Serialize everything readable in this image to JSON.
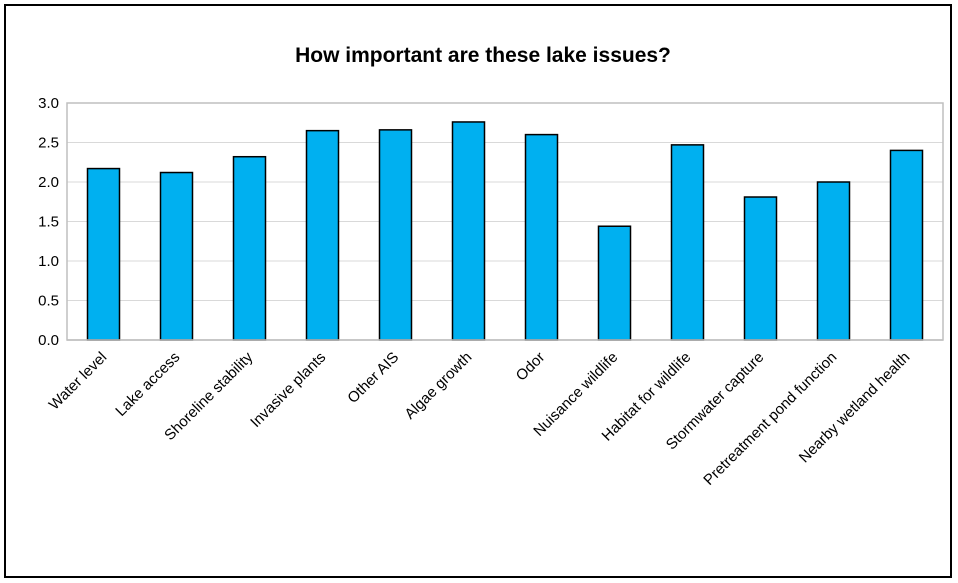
{
  "chart_data": {
    "type": "bar",
    "title": "How important are these lake issues?",
    "xlabel": "",
    "ylabel": "",
    "ylim": [
      0,
      3
    ],
    "yticks": [
      "0.0",
      "0.5",
      "1.0",
      "1.5",
      "2.0",
      "2.5",
      "3.0"
    ],
    "grid": true,
    "legend": "none",
    "bar_color": "#00B0F0",
    "categories": [
      "Water level",
      "Lake access",
      "Shoreline stability",
      "Invasive plants",
      "Other AIS",
      "Algae growth",
      "Odor",
      "Nuisance wildlife",
      "Habitat for wildlife",
      "Stormwater capture",
      "Pretreatment pond function",
      "Nearby wetland health"
    ],
    "values": [
      2.17,
      2.12,
      2.32,
      2.65,
      2.66,
      2.76,
      2.6,
      1.44,
      2.47,
      1.81,
      2.0,
      2.4
    ]
  }
}
